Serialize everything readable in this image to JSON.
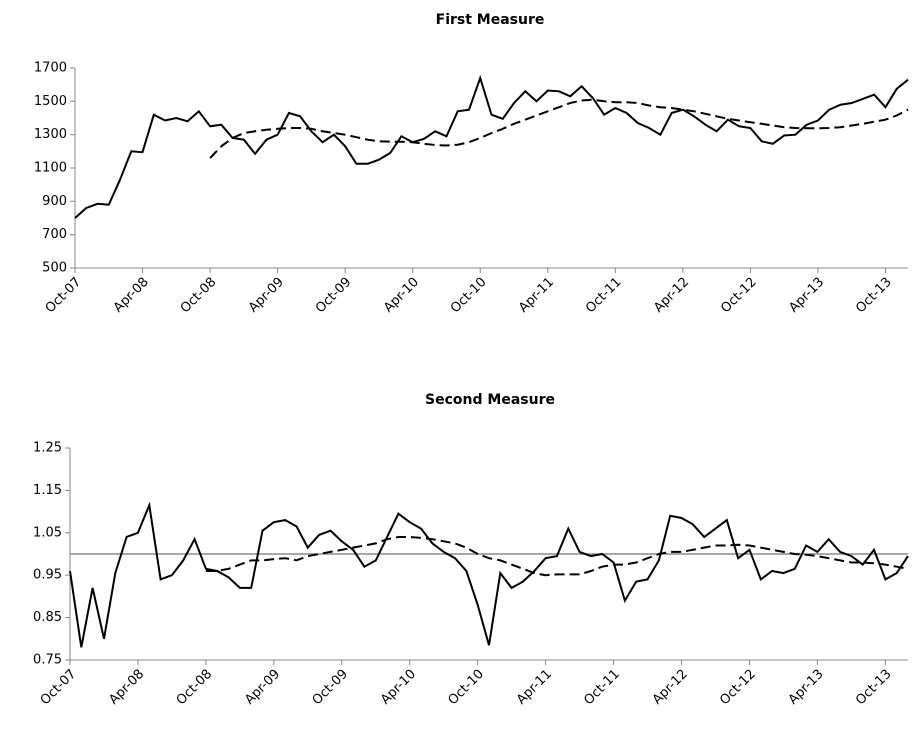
{
  "chart_data": [
    {
      "type": "line",
      "title": "First Measure",
      "categories": [
        "Oct-07",
        null,
        null,
        null,
        null,
        null,
        "Apr-08",
        null,
        null,
        null,
        null,
        null,
        "Oct-08",
        null,
        null,
        null,
        null,
        null,
        "Apr-09",
        null,
        null,
        null,
        null,
        null,
        "Oct-09",
        null,
        null,
        null,
        null,
        null,
        "Apr-10",
        null,
        null,
        null,
        null,
        null,
        "Oct-10",
        null,
        null,
        null,
        null,
        null,
        "Apr-11",
        null,
        null,
        null,
        null,
        null,
        "Oct-11",
        null,
        null,
        null,
        null,
        null,
        "Apr-12",
        null,
        null,
        null,
        null,
        null,
        "Oct-12",
        null,
        null,
        null,
        null,
        null,
        "Apr-13",
        null,
        null,
        null,
        null,
        null,
        "Oct-13",
        null,
        null
      ],
      "series": [
        {
          "color": "#000000",
          "style": "solid",
          "values": [
            800,
            860,
            885,
            880,
            1030,
            1200,
            1195,
            1420,
            1385,
            1400,
            1380,
            1440,
            1350,
            1360,
            1280,
            1270,
            1185,
            1270,
            1300,
            1430,
            1410,
            1320,
            1255,
            1300,
            1230,
            1125,
            1125,
            1150,
            1190,
            1290,
            1255,
            1275,
            1320,
            1290,
            1440,
            1450,
            1640,
            1420,
            1395,
            1490,
            1560,
            1500,
            1565,
            1560,
            1530,
            1590,
            1520,
            1420,
            1460,
            1430,
            1370,
            1340,
            1300,
            1430,
            1450,
            1410,
            1360,
            1320,
            1390,
            1350,
            1340,
            1260,
            1245,
            1295,
            1300,
            1360,
            1385,
            1450,
            1480,
            1490,
            1515,
            1540,
            1465,
            1575,
            1630
          ]
        },
        {
          "color": "#000000",
          "style": "dashed",
          "values": [
            null,
            null,
            null,
            null,
            null,
            null,
            null,
            null,
            null,
            null,
            null,
            null,
            1160,
            1230,
            1280,
            1310,
            1320,
            1330,
            1335,
            1340,
            1340,
            1335,
            1320,
            1310,
            1300,
            1285,
            1270,
            1260,
            1258,
            1258,
            1255,
            1245,
            1238,
            1235,
            1240,
            1255,
            1280,
            1310,
            1335,
            1365,
            1390,
            1415,
            1440,
            1465,
            1490,
            1505,
            1510,
            1500,
            1495,
            1495,
            1490,
            1475,
            1465,
            1460,
            1450,
            1440,
            1425,
            1410,
            1395,
            1385,
            1375,
            1365,
            1355,
            1345,
            1340,
            1338,
            1338,
            1340,
            1345,
            1355,
            1365,
            1378,
            1390,
            1415,
            1450
          ]
        }
      ],
      "ylim": [
        500,
        1700
      ],
      "yticks": [
        500,
        700,
        900,
        1100,
        1300,
        1500,
        1700
      ]
    },
    {
      "type": "line",
      "title": "Second Measure",
      "categories": [
        "Oct-07",
        null,
        null,
        null,
        null,
        null,
        "Apr-08",
        null,
        null,
        null,
        null,
        null,
        "Oct-08",
        null,
        null,
        null,
        null,
        null,
        "Apr-09",
        null,
        null,
        null,
        null,
        null,
        "Oct-09",
        null,
        null,
        null,
        null,
        null,
        "Apr-10",
        null,
        null,
        null,
        null,
        null,
        "Oct-10",
        null,
        null,
        null,
        null,
        null,
        "Apr-11",
        null,
        null,
        null,
        null,
        null,
        "Oct-11",
        null,
        null,
        null,
        null,
        null,
        "Apr-12",
        null,
        null,
        null,
        null,
        null,
        "Oct-12",
        null,
        null,
        null,
        null,
        null,
        "Apr-13",
        null,
        null,
        null,
        null,
        null,
        "Oct-13",
        null,
        null
      ],
      "series": [
        {
          "color": "#000000",
          "style": "solid",
          "values": [
            0.96,
            0.78,
            0.92,
            0.8,
            0.955,
            1.04,
            1.05,
            1.115,
            0.94,
            0.95,
            0.985,
            1.035,
            0.965,
            0.96,
            0.945,
            0.92,
            0.92,
            1.055,
            1.075,
            1.08,
            1.065,
            1.015,
            1.045,
            1.055,
            1.03,
            1.01,
            0.97,
            0.985,
            1.04,
            1.095,
            1.075,
            1.06,
            1.025,
            1.005,
            0.99,
            0.96,
            0.88,
            0.785,
            0.955,
            0.92,
            0.935,
            0.96,
            0.99,
            0.995,
            1.06,
            1.005,
            0.995,
            1.0,
            0.98,
            0.89,
            0.935,
            0.94,
            0.985,
            1.09,
            1.085,
            1.07,
            1.04,
            1.06,
            1.08,
            0.99,
            1.01,
            0.94,
            0.96,
            0.955,
            0.965,
            1.02,
            1.005,
            1.035,
            1.005,
            0.995,
            0.975,
            1.01,
            0.94,
            0.955,
            0.995
          ]
        },
        {
          "color": "#000000",
          "style": "dashed",
          "values": [
            null,
            null,
            null,
            null,
            null,
            null,
            null,
            null,
            null,
            null,
            null,
            null,
            0.96,
            0.96,
            0.965,
            0.975,
            0.985,
            0.985,
            0.988,
            0.99,
            0.985,
            0.995,
            1.0,
            1.005,
            1.01,
            1.015,
            1.02,
            1.025,
            1.035,
            1.04,
            1.04,
            1.038,
            1.035,
            1.03,
            1.025,
            1.015,
            1.0,
            0.99,
            0.985,
            0.975,
            0.965,
            0.955,
            0.95,
            0.952,
            0.952,
            0.952,
            0.96,
            0.97,
            0.975,
            0.975,
            0.98,
            0.99,
            1.0,
            1.005,
            1.005,
            1.01,
            1.015,
            1.02,
            1.02,
            1.022,
            1.02,
            1.015,
            1.01,
            1.005,
            1.0,
            0.998,
            0.995,
            0.99,
            0.985,
            0.98,
            0.98,
            0.978,
            0.975,
            0.97,
            0.965
          ]
        }
      ],
      "reference_line": {
        "value": 1,
        "color": "#8c8c8c"
      },
      "ylim": [
        0.75,
        1.25
      ],
      "yticks": [
        0.75,
        0.85,
        0.95,
        1.05,
        1.15,
        1.25
      ]
    }
  ]
}
